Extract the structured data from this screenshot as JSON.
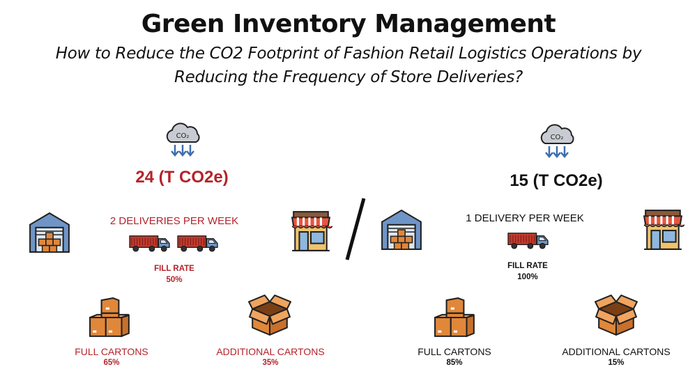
{
  "header": {
    "title": "Green Inventory Management",
    "subtitle_line1": "How to Reduce the CO2 Footprint of Fashion Retail Logistics Operations by",
    "subtitle_line2": "Reducing the Frequency of Store Deliveries?"
  },
  "icons": {
    "cloud": "co2-cloud-icon",
    "cloud_text": "CO₂",
    "warehouse": "warehouse-icon",
    "store": "store-icon",
    "truck": "truck-icon",
    "full_cartons": "stacked-boxes-icon",
    "open_carton": "open-box-icon"
  },
  "colors": {
    "left_accent": "#b4232a",
    "right_accent": "#111111",
    "cloud": "#c8ccd2",
    "warehouse": "#6f95c7",
    "box": "#e0873a",
    "truck": "#c23a2e"
  },
  "scenarios": [
    {
      "co2": "24 (T CO2e)",
      "deliveries": "2 DELIVERIES PER WEEK",
      "trucks": 2,
      "fill_rate_label": "FILL RATE",
      "fill_rate_value": "50%",
      "full_cartons_label": "FULL CARTONS",
      "full_cartons_value": "65%",
      "additional_cartons_label": "ADDITIONAL CARTONS",
      "additional_cartons_value": "35%"
    },
    {
      "co2": "15 (T CO2e)",
      "deliveries": "1 DELIVERY PER WEEK",
      "trucks": 1,
      "fill_rate_label": "FILL RATE",
      "fill_rate_value": "100%",
      "full_cartons_label": "FULL CARTONS",
      "full_cartons_value": "85%",
      "additional_cartons_label": "ADDITIONAL CARTONS",
      "additional_cartons_value": "15%"
    }
  ]
}
